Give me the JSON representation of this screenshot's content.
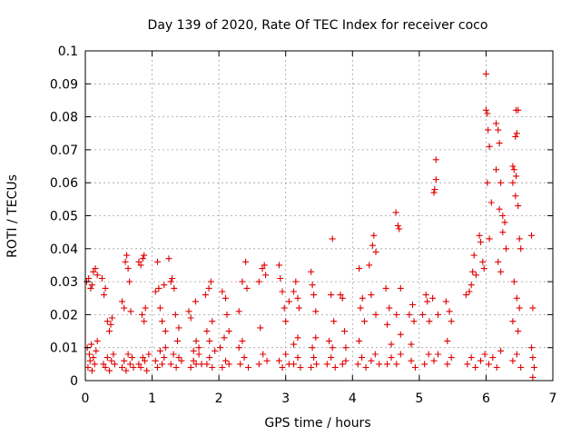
{
  "chart_data": {
    "type": "scatter",
    "title": "Day 139 of 2020, Rate Of TEC Index for receiver coco",
    "xlabel": "GPS time / hours",
    "ylabel": "ROTI / TECUs",
    "xlim": [
      0,
      7
    ],
    "ylim": [
      0,
      0.1
    ],
    "x_ticks": [
      "0",
      "1",
      "2",
      "3",
      "4",
      "5",
      "6",
      "7"
    ],
    "y_ticks": [
      "0",
      "0.01",
      "0.02",
      "0.03",
      "0.04",
      "0.05",
      "0.06",
      "0.07",
      "0.08",
      "0.09",
      "0.1"
    ],
    "grid": true,
    "marker": "+",
    "color": "#e00000",
    "series": [
      {
        "name": "ROTI",
        "points": [
          [
            0.02,
            0.03
          ],
          [
            0.05,
            0.031
          ],
          [
            0.08,
            0.028
          ],
          [
            0.1,
            0.029
          ],
          [
            0.12,
            0.033
          ],
          [
            0.15,
            0.034
          ],
          [
            0.18,
            0.032
          ],
          [
            0.03,
            0.01
          ],
          [
            0.06,
            0.008
          ],
          [
            0.09,
            0.011
          ],
          [
            0.12,
            0.007
          ],
          [
            0.14,
            0.005
          ],
          [
            0.04,
            0.004
          ],
          [
            0.07,
            0.006
          ],
          [
            0.1,
            0.003
          ],
          [
            0.16,
            0.009
          ],
          [
            0.18,
            0.012
          ],
          [
            0.25,
            0.031
          ],
          [
            0.28,
            0.026
          ],
          [
            0.3,
            0.028
          ],
          [
            0.33,
            0.018
          ],
          [
            0.36,
            0.015
          ],
          [
            0.38,
            0.017
          ],
          [
            0.4,
            0.019
          ],
          [
            0.27,
            0.005
          ],
          [
            0.3,
            0.004
          ],
          [
            0.33,
            0.007
          ],
          [
            0.36,
            0.003
          ],
          [
            0.39,
            0.006
          ],
          [
            0.42,
            0.008
          ],
          [
            0.44,
            0.005
          ],
          [
            0.55,
            0.024
          ],
          [
            0.58,
            0.022
          ],
          [
            0.6,
            0.036
          ],
          [
            0.62,
            0.038
          ],
          [
            0.64,
            0.034
          ],
          [
            0.66,
            0.03
          ],
          [
            0.68,
            0.021
          ],
          [
            0.55,
            0.004
          ],
          [
            0.58,
            0.006
          ],
          [
            0.61,
            0.003
          ],
          [
            0.64,
            0.008
          ],
          [
            0.67,
            0.005
          ],
          [
            0.7,
            0.007
          ],
          [
            0.72,
            0.004
          ],
          [
            0.8,
            0.036
          ],
          [
            0.83,
            0.035
          ],
          [
            0.86,
            0.037
          ],
          [
            0.88,
            0.038
          ],
          [
            0.85,
            0.02
          ],
          [
            0.88,
            0.018
          ],
          [
            0.9,
            0.022
          ],
          [
            0.8,
            0.005
          ],
          [
            0.83,
            0.004
          ],
          [
            0.86,
            0.007
          ],
          [
            0.89,
            0.006
          ],
          [
            0.92,
            0.003
          ],
          [
            0.95,
            0.008
          ],
          [
            1.05,
            0.027
          ],
          [
            1.08,
            0.036
          ],
          [
            1.1,
            0.028
          ],
          [
            1.12,
            0.022
          ],
          [
            1.15,
            0.018
          ],
          [
            1.18,
            0.029
          ],
          [
            1.2,
            0.015
          ],
          [
            1.05,
            0.006
          ],
          [
            1.08,
            0.004
          ],
          [
            1.12,
            0.009
          ],
          [
            1.15,
            0.005
          ],
          [
            1.18,
            0.007
          ],
          [
            1.2,
            0.01
          ],
          [
            1.25,
            0.037
          ],
          [
            1.28,
            0.03
          ],
          [
            1.3,
            0.031
          ],
          [
            1.33,
            0.028
          ],
          [
            1.35,
            0.02
          ],
          [
            1.38,
            0.012
          ],
          [
            1.4,
            0.016
          ],
          [
            1.28,
            0.005
          ],
          [
            1.32,
            0.008
          ],
          [
            1.36,
            0.004
          ],
          [
            1.4,
            0.007
          ],
          [
            1.44,
            0.006
          ],
          [
            1.55,
            0.021
          ],
          [
            1.58,
            0.019
          ],
          [
            1.65,
            0.024
          ],
          [
            1.62,
            0.009
          ],
          [
            1.66,
            0.012
          ],
          [
            1.7,
            0.01
          ],
          [
            1.58,
            0.004
          ],
          [
            1.62,
            0.006
          ],
          [
            1.66,
            0.005
          ],
          [
            1.7,
            0.008
          ],
          [
            1.74,
            0.005
          ],
          [
            1.8,
            0.026
          ],
          [
            1.85,
            0.028
          ],
          [
            1.88,
            0.03
          ],
          [
            1.82,
            0.015
          ],
          [
            1.86,
            0.012
          ],
          [
            1.9,
            0.018
          ],
          [
            1.82,
            0.005
          ],
          [
            1.86,
            0.007
          ],
          [
            1.9,
            0.004
          ],
          [
            1.94,
            0.009
          ],
          [
            2.05,
            0.027
          ],
          [
            2.1,
            0.025
          ],
          [
            2.12,
            0.02
          ],
          [
            2.15,
            0.015
          ],
          [
            2.02,
            0.01
          ],
          [
            2.08,
            0.013
          ],
          [
            2.05,
            0.004
          ],
          [
            2.1,
            0.006
          ],
          [
            2.15,
            0.005
          ],
          [
            2.3,
            0.021
          ],
          [
            2.35,
            0.03
          ],
          [
            2.4,
            0.036
          ],
          [
            2.42,
            0.028
          ],
          [
            2.3,
            0.01
          ],
          [
            2.35,
            0.012
          ],
          [
            2.32,
            0.005
          ],
          [
            2.38,
            0.007
          ],
          [
            2.44,
            0.004
          ],
          [
            2.6,
            0.03
          ],
          [
            2.65,
            0.034
          ],
          [
            2.68,
            0.035
          ],
          [
            2.7,
            0.032
          ],
          [
            2.62,
            0.016
          ],
          [
            2.6,
            0.005
          ],
          [
            2.66,
            0.008
          ],
          [
            2.72,
            0.006
          ],
          [
            2.9,
            0.035
          ],
          [
            2.92,
            0.031
          ],
          [
            2.95,
            0.027
          ],
          [
            2.98,
            0.022
          ],
          [
            3.0,
            0.018
          ],
          [
            3.05,
            0.024
          ],
          [
            2.9,
            0.006
          ],
          [
            2.95,
            0.004
          ],
          [
            3.0,
            0.008
          ],
          [
            3.05,
            0.005
          ],
          [
            3.12,
            0.027
          ],
          [
            3.15,
            0.03
          ],
          [
            3.18,
            0.025
          ],
          [
            3.2,
            0.022
          ],
          [
            3.12,
            0.011
          ],
          [
            3.18,
            0.013
          ],
          [
            3.12,
            0.005
          ],
          [
            3.18,
            0.007
          ],
          [
            3.22,
            0.004
          ],
          [
            3.38,
            0.033
          ],
          [
            3.4,
            0.029
          ],
          [
            3.42,
            0.026
          ],
          [
            3.45,
            0.021
          ],
          [
            3.4,
            0.01
          ],
          [
            3.45,
            0.013
          ],
          [
            3.38,
            0.004
          ],
          [
            3.42,
            0.007
          ],
          [
            3.46,
            0.005
          ],
          [
            3.7,
            0.043
          ],
          [
            3.68,
            0.026
          ],
          [
            3.72,
            0.018
          ],
          [
            3.65,
            0.012
          ],
          [
            3.7,
            0.01
          ],
          [
            3.62,
            0.005
          ],
          [
            3.68,
            0.007
          ],
          [
            3.74,
            0.004
          ],
          [
            3.82,
            0.026
          ],
          [
            3.85,
            0.025
          ],
          [
            3.88,
            0.015
          ],
          [
            3.9,
            0.01
          ],
          [
            3.85,
            0.005
          ],
          [
            3.9,
            0.006
          ],
          [
            4.1,
            0.034
          ],
          [
            4.15,
            0.025
          ],
          [
            4.12,
            0.022
          ],
          [
            4.18,
            0.018
          ],
          [
            4.1,
            0.012
          ],
          [
            4.08,
            0.005
          ],
          [
            4.14,
            0.007
          ],
          [
            4.2,
            0.004
          ],
          [
            4.25,
            0.035
          ],
          [
            4.3,
            0.041
          ],
          [
            4.32,
            0.044
          ],
          [
            4.35,
            0.039
          ],
          [
            4.28,
            0.026
          ],
          [
            4.35,
            0.02
          ],
          [
            4.28,
            0.006
          ],
          [
            4.34,
            0.008
          ],
          [
            4.4,
            0.005
          ],
          [
            4.5,
            0.028
          ],
          [
            4.55,
            0.022
          ],
          [
            4.52,
            0.017
          ],
          [
            4.58,
            0.011
          ],
          [
            4.52,
            0.005
          ],
          [
            4.58,
            0.007
          ],
          [
            4.65,
            0.051
          ],
          [
            4.68,
            0.047
          ],
          [
            4.7,
            0.046
          ],
          [
            4.72,
            0.028
          ],
          [
            4.66,
            0.02
          ],
          [
            4.72,
            0.014
          ],
          [
            4.66,
            0.005
          ],
          [
            4.72,
            0.008
          ],
          [
            4.85,
            0.02
          ],
          [
            4.9,
            0.023
          ],
          [
            4.92,
            0.018
          ],
          [
            4.88,
            0.011
          ],
          [
            4.88,
            0.006
          ],
          [
            4.94,
            0.004
          ],
          [
            5.05,
            0.02
          ],
          [
            5.1,
            0.026
          ],
          [
            5.12,
            0.024
          ],
          [
            5.15,
            0.018
          ],
          [
            5.08,
            0.005
          ],
          [
            5.14,
            0.008
          ],
          [
            5.25,
            0.067
          ],
          [
            5.22,
            0.057
          ],
          [
            5.23,
            0.058
          ],
          [
            5.25,
            0.061
          ],
          [
            5.2,
            0.025
          ],
          [
            5.28,
            0.02
          ],
          [
            5.22,
            0.006
          ],
          [
            5.28,
            0.008
          ],
          [
            5.4,
            0.024
          ],
          [
            5.45,
            0.021
          ],
          [
            5.48,
            0.018
          ],
          [
            5.42,
            0.012
          ],
          [
            5.42,
            0.005
          ],
          [
            5.48,
            0.007
          ],
          [
            5.7,
            0.026
          ],
          [
            5.75,
            0.027
          ],
          [
            5.78,
            0.029
          ],
          [
            5.8,
            0.033
          ],
          [
            5.82,
            0.038
          ],
          [
            5.85,
            0.032
          ],
          [
            5.72,
            0.005
          ],
          [
            5.78,
            0.007
          ],
          [
            5.84,
            0.004
          ],
          [
            5.9,
            0.044
          ],
          [
            5.92,
            0.042
          ],
          [
            5.95,
            0.036
          ],
          [
            5.97,
            0.034
          ],
          [
            6.0,
            0.093
          ],
          [
            6.02,
            0.081
          ],
          [
            6.0,
            0.082
          ],
          [
            6.03,
            0.076
          ],
          [
            6.05,
            0.071
          ],
          [
            6.02,
            0.06
          ],
          [
            6.08,
            0.054
          ],
          [
            6.05,
            0.043
          ],
          [
            6.15,
            0.078
          ],
          [
            6.18,
            0.076
          ],
          [
            6.2,
            0.072
          ],
          [
            6.15,
            0.064
          ],
          [
            6.22,
            0.06
          ],
          [
            6.2,
            0.052
          ],
          [
            6.25,
            0.05
          ],
          [
            6.28,
            0.048
          ],
          [
            6.25,
            0.045
          ],
          [
            6.3,
            0.04
          ],
          [
            6.18,
            0.036
          ],
          [
            6.22,
            0.033
          ],
          [
            5.92,
            0.006
          ],
          [
            5.98,
            0.008
          ],
          [
            6.04,
            0.005
          ],
          [
            6.1,
            0.007
          ],
          [
            6.16,
            0.004
          ],
          [
            6.22,
            0.009
          ],
          [
            6.4,
            0.065
          ],
          [
            6.42,
            0.064
          ],
          [
            6.45,
            0.062
          ],
          [
            6.4,
            0.06
          ],
          [
            6.44,
            0.056
          ],
          [
            6.48,
            0.053
          ],
          [
            6.45,
            0.082
          ],
          [
            6.48,
            0.082
          ],
          [
            6.44,
            0.074
          ],
          [
            6.46,
            0.075
          ],
          [
            6.5,
            0.043
          ],
          [
            6.52,
            0.04
          ],
          [
            6.42,
            0.03
          ],
          [
            6.46,
            0.025
          ],
          [
            6.5,
            0.022
          ],
          [
            6.4,
            0.018
          ],
          [
            6.48,
            0.015
          ],
          [
            6.4,
            0.006
          ],
          [
            6.46,
            0.008
          ],
          [
            6.52,
            0.004
          ],
          [
            6.68,
            0.044
          ],
          [
            6.7,
            0.022
          ],
          [
            6.68,
            0.01
          ],
          [
            6.7,
            0.007
          ],
          [
            6.72,
            0.004
          ],
          [
            6.7,
            0.001
          ]
        ]
      }
    ]
  }
}
